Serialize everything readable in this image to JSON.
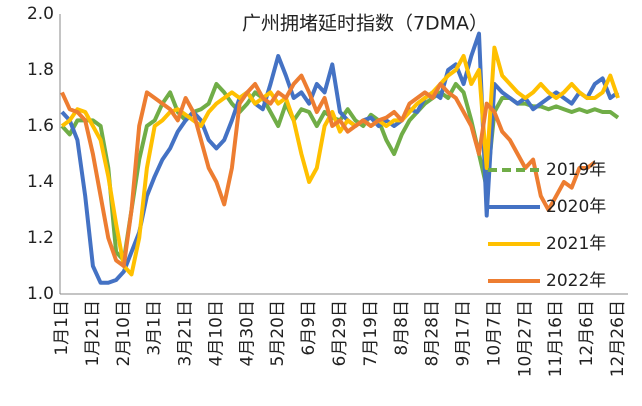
{
  "chart_data": {
    "type": "line",
    "title": "广州拥堵延时指数（7DMA）",
    "categories": [
      "1月1日",
      null,
      null,
      null,
      "1月21日",
      null,
      null,
      null,
      "2月10日",
      null,
      null,
      null,
      "3月1日",
      null,
      null,
      null,
      "3月21日",
      null,
      null,
      null,
      "4月10日",
      null,
      null,
      null,
      "4月30日",
      null,
      null,
      null,
      "5月20日",
      null,
      null,
      null,
      "6月9日",
      null,
      null,
      null,
      "6月29日",
      null,
      null,
      null,
      "7月19日",
      null,
      null,
      null,
      "8月8日",
      null,
      null,
      null,
      "8月28日",
      null,
      null,
      null,
      "9月17日",
      null,
      null,
      null,
      "10月7日",
      null,
      null,
      null,
      "10月27日",
      null,
      null,
      null,
      "11月16日",
      null,
      null,
      null,
      "12月6日",
      null,
      null,
      null,
      "12月26日"
    ],
    "ylim": [
      1.0,
      2.0
    ],
    "yticks": [
      {
        "value": 1.0,
        "label": "1.0"
      },
      1.2,
      1.4,
      1.6,
      1.8,
      {
        "value": 2.0,
        "label": "2.0"
      }
    ],
    "legend": "right",
    "series": [
      {
        "name": "2019年",
        "color": "#70ad47",
        "dashed": true,
        "values": [
          1.6,
          1.57,
          1.62,
          1.62,
          1.62,
          1.6,
          1.45,
          1.15,
          1.12,
          1.3,
          1.48,
          1.6,
          1.62,
          1.68,
          1.72,
          1.65,
          1.62,
          1.65,
          1.66,
          1.68,
          1.75,
          1.72,
          1.68,
          1.65,
          1.68,
          1.72,
          1.7,
          1.65,
          1.6,
          1.68,
          1.62,
          1.66,
          1.65,
          1.6,
          1.65,
          1.63,
          1.62,
          1.66,
          1.62,
          1.6,
          1.64,
          1.62,
          1.55,
          1.5,
          1.57,
          1.62,
          1.65,
          1.68,
          1.7,
          1.72,
          1.7,
          1.75,
          1.72,
          1.62,
          1.5,
          1.38,
          1.65,
          1.7,
          1.7,
          1.68,
          1.68,
          1.67,
          1.67,
          1.66,
          1.67,
          1.66,
          1.65,
          1.66,
          1.65,
          1.66,
          1.65,
          1.65,
          1.63
        ]
      },
      {
        "name": "2020年",
        "color": "#4472c4",
        "values": [
          1.65,
          1.62,
          1.55,
          1.35,
          1.1,
          1.04,
          1.04,
          1.05,
          1.08,
          1.15,
          1.22,
          1.35,
          1.42,
          1.48,
          1.52,
          1.58,
          1.62,
          1.65,
          1.62,
          1.55,
          1.52,
          1.55,
          1.62,
          1.7,
          1.72,
          1.68,
          1.66,
          1.75,
          1.85,
          1.78,
          1.7,
          1.72,
          1.68,
          1.75,
          1.72,
          1.82,
          1.65,
          1.62,
          1.6,
          1.62,
          1.63,
          1.6,
          1.62,
          1.6,
          1.62,
          1.66,
          1.65,
          1.7,
          1.72,
          1.7,
          1.8,
          1.82,
          1.75,
          1.85,
          1.93,
          1.28,
          1.75,
          1.72,
          1.7,
          1.68,
          1.7,
          1.66,
          1.68,
          1.7,
          1.72,
          1.7,
          1.68,
          1.72,
          1.7,
          1.75,
          1.77,
          1.7,
          1.72
        ]
      },
      {
        "name": "2021年",
        "color": "#ffc000",
        "values": [
          1.6,
          1.62,
          1.66,
          1.65,
          1.6,
          1.55,
          1.42,
          1.25,
          1.1,
          1.07,
          1.2,
          1.45,
          1.6,
          1.62,
          1.65,
          1.66,
          1.64,
          1.62,
          1.6,
          1.65,
          1.68,
          1.7,
          1.72,
          1.7,
          1.72,
          1.68,
          1.7,
          1.72,
          1.68,
          1.7,
          1.62,
          1.5,
          1.4,
          1.45,
          1.6,
          1.65,
          1.58,
          1.62,
          1.6,
          1.62,
          1.6,
          1.62,
          1.6,
          1.62,
          1.62,
          1.65,
          1.68,
          1.7,
          1.72,
          1.75,
          1.78,
          1.8,
          1.85,
          1.75,
          1.8,
          1.45,
          1.88,
          1.78,
          1.75,
          1.72,
          1.7,
          1.72,
          1.75,
          1.72,
          1.7,
          1.72,
          1.75,
          1.72,
          1.7,
          1.7,
          1.72,
          1.78,
          1.7
        ]
      },
      {
        "name": "2022年",
        "color": "#ed7d31",
        "values": [
          1.72,
          1.66,
          1.65,
          1.62,
          1.5,
          1.35,
          1.2,
          1.12,
          1.1,
          1.3,
          1.6,
          1.72,
          1.7,
          1.68,
          1.66,
          1.62,
          1.7,
          1.65,
          1.55,
          1.45,
          1.4,
          1.32,
          1.45,
          1.68,
          1.72,
          1.75,
          1.7,
          1.68,
          1.72,
          1.7,
          1.75,
          1.78,
          1.72,
          1.65,
          1.7,
          1.6,
          1.62,
          1.58,
          1.6,
          1.62,
          1.6,
          1.62,
          1.63,
          1.65,
          1.62,
          1.68,
          1.7,
          1.72,
          1.7,
          1.75,
          1.72,
          1.7,
          1.65,
          1.6,
          1.5,
          1.68,
          1.65,
          1.58,
          1.55,
          1.5,
          1.45,
          1.48,
          1.35,
          1.3,
          1.35,
          1.4,
          1.38,
          1.45,
          1.45,
          1.47,
          null,
          null,
          null
        ]
      }
    ]
  }
}
